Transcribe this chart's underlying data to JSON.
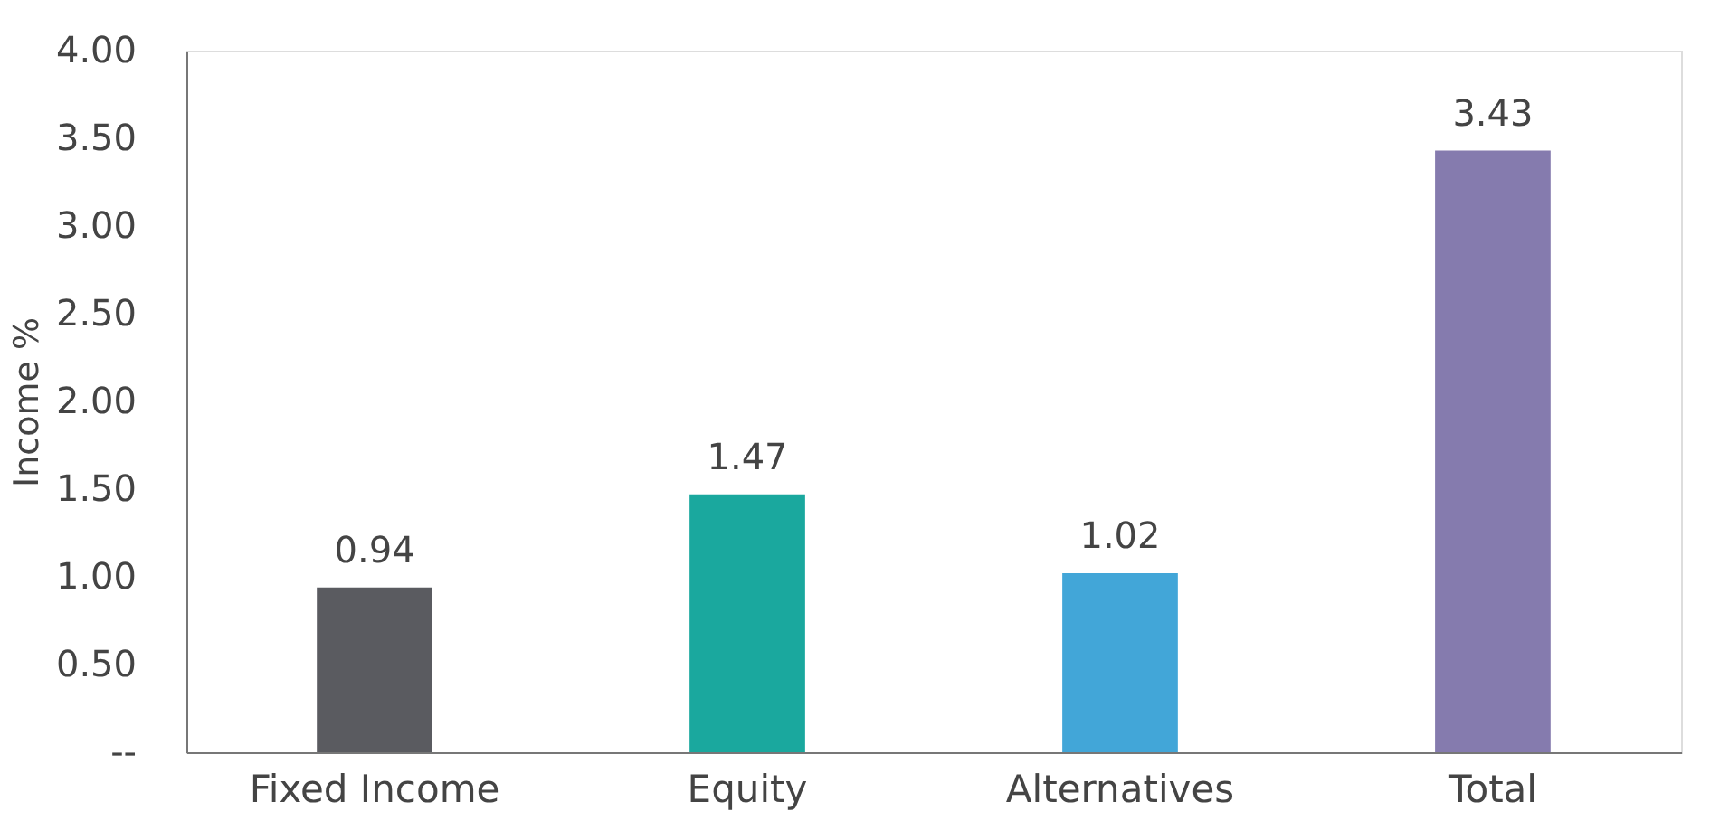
{
  "chart_data": {
    "type": "bar",
    "ylabel": "Income %",
    "categories": [
      "Fixed Income",
      "Equity",
      "Alternatives",
      "Total"
    ],
    "values": [
      0.94,
      1.47,
      1.02,
      3.43
    ],
    "colors": [
      "#5a5b60",
      "#1aa89e",
      "#42a6d8",
      "#857bae"
    ],
    "ylim": [
      0,
      4
    ],
    "yticks": [
      {
        "value": 0,
        "label": "--"
      },
      {
        "value": 0.5,
        "label": "0.50"
      },
      {
        "value": 1,
        "label": "1.00"
      },
      {
        "value": 1.5,
        "label": "1.50"
      },
      {
        "value": 2,
        "label": "2.00"
      },
      {
        "value": 2.5,
        "label": "2.50"
      },
      {
        "value": 3,
        "label": "3.00"
      },
      {
        "value": 3.5,
        "label": "3.50"
      },
      {
        "value": 4,
        "label": "4.00"
      }
    ],
    "data_labels": true,
    "grid": false
  }
}
